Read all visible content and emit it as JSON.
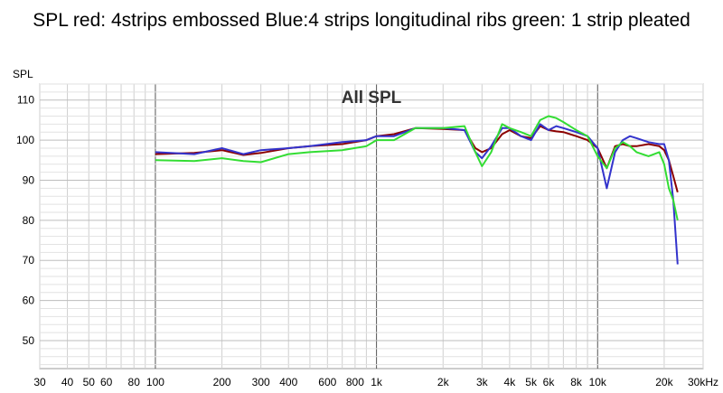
{
  "chart_data": {
    "type": "line",
    "title": "SPL red: 4strips embossed Blue:4 strips longitudinal ribs green: 1 strip pleated",
    "inner_title": "All SPL",
    "ylabel": "SPL",
    "xlabel": "",
    "xscale": "log",
    "xlim": [
      30,
      30000
    ],
    "ylim": [
      43,
      114
    ],
    "grid": true,
    "x_tick_labels": [
      {
        "v": 30,
        "t": "30"
      },
      {
        "v": 40,
        "t": "40"
      },
      {
        "v": 50,
        "t": "50"
      },
      {
        "v": 60,
        "t": "60"
      },
      {
        "v": 80,
        "t": "80"
      },
      {
        "v": 100,
        "t": "100"
      },
      {
        "v": 200,
        "t": "200"
      },
      {
        "v": 300,
        "t": "300"
      },
      {
        "v": 400,
        "t": "400"
      },
      {
        "v": 600,
        "t": "600"
      },
      {
        "v": 800,
        "t": "800"
      },
      {
        "v": 1000,
        "t": "1k"
      },
      {
        "v": 2000,
        "t": "2k"
      },
      {
        "v": 3000,
        "t": "3k"
      },
      {
        "v": 4000,
        "t": "4k"
      },
      {
        "v": 5000,
        "t": "5k"
      },
      {
        "v": 6000,
        "t": "6k"
      },
      {
        "v": 8000,
        "t": "8k"
      },
      {
        "v": 10000,
        "t": "10k"
      },
      {
        "v": 20000,
        "t": "20k"
      },
      {
        "v": 30000,
        "t": "30kHz"
      }
    ],
    "y_ticks": [
      50,
      60,
      70,
      80,
      90,
      100,
      110
    ],
    "series": [
      {
        "color": "#8b0000",
        "x": [
          100,
          150,
          200,
          250,
          300,
          400,
          500,
          700,
          900,
          1000,
          1200,
          1500,
          2000,
          2500,
          2800,
          3000,
          3300,
          3700,
          4000,
          4500,
          5000,
          5500,
          6000,
          6500,
          7000,
          8000,
          9000,
          10000,
          11000,
          12000,
          13000,
          14000,
          15000,
          17000,
          19000,
          20000,
          21000,
          22000,
          23000
        ],
        "y": [
          96.5,
          96.8,
          97.5,
          96.3,
          96.8,
          98,
          98.5,
          99,
          100,
          101,
          101.5,
          103,
          102.8,
          102.5,
          98,
          97,
          98,
          101.5,
          102.5,
          101,
          100.5,
          103.5,
          102.5,
          102.2,
          102,
          101,
          100,
          98,
          93,
          98.5,
          99,
          98.5,
          98.5,
          99,
          98.5,
          97.5,
          95,
          91,
          87
        ]
      },
      {
        "color": "#3333cc",
        "x": [
          100,
          150,
          200,
          250,
          300,
          400,
          500,
          700,
          900,
          1000,
          1200,
          1500,
          2000,
          2500,
          2800,
          3000,
          3300,
          3700,
          4000,
          4500,
          5000,
          5500,
          6000,
          6500,
          7000,
          8000,
          9000,
          10000,
          11000,
          12000,
          13000,
          14000,
          15000,
          17000,
          19000,
          20000,
          21000,
          22000,
          23000
        ],
        "y": [
          97,
          96.5,
          98,
          96.5,
          97.5,
          98,
          98.5,
          99.5,
          100,
          101,
          101,
          103,
          103,
          102.5,
          97,
          95.5,
          98.5,
          103,
          103,
          101,
          100,
          104,
          102.5,
          103.5,
          103,
          102,
          101,
          98,
          88,
          97,
          100,
          101,
          100.5,
          99.5,
          99,
          99,
          95,
          85,
          69
        ]
      },
      {
        "color": "#33dd33",
        "x": [
          100,
          150,
          200,
          250,
          300,
          400,
          500,
          700,
          900,
          1000,
          1200,
          1500,
          2000,
          2500,
          2800,
          3000,
          3300,
          3700,
          4000,
          4500,
          5000,
          5500,
          6000,
          6500,
          7000,
          8000,
          9000,
          10000,
          11000,
          12000,
          13000,
          14000,
          15000,
          17000,
          19000,
          20000,
          21000,
          22000,
          23000
        ],
        "y": [
          95,
          94.8,
          95.5,
          94.8,
          94.5,
          96.5,
          97,
          97.5,
          98.5,
          100,
          100,
          103,
          103,
          103.5,
          97,
          93.5,
          97,
          104,
          103,
          102,
          101,
          105,
          106,
          105.5,
          104.5,
          102.5,
          101,
          96,
          93,
          98,
          99.5,
          98.5,
          97,
          96,
          97,
          94,
          88,
          85,
          80
        ]
      }
    ]
  }
}
